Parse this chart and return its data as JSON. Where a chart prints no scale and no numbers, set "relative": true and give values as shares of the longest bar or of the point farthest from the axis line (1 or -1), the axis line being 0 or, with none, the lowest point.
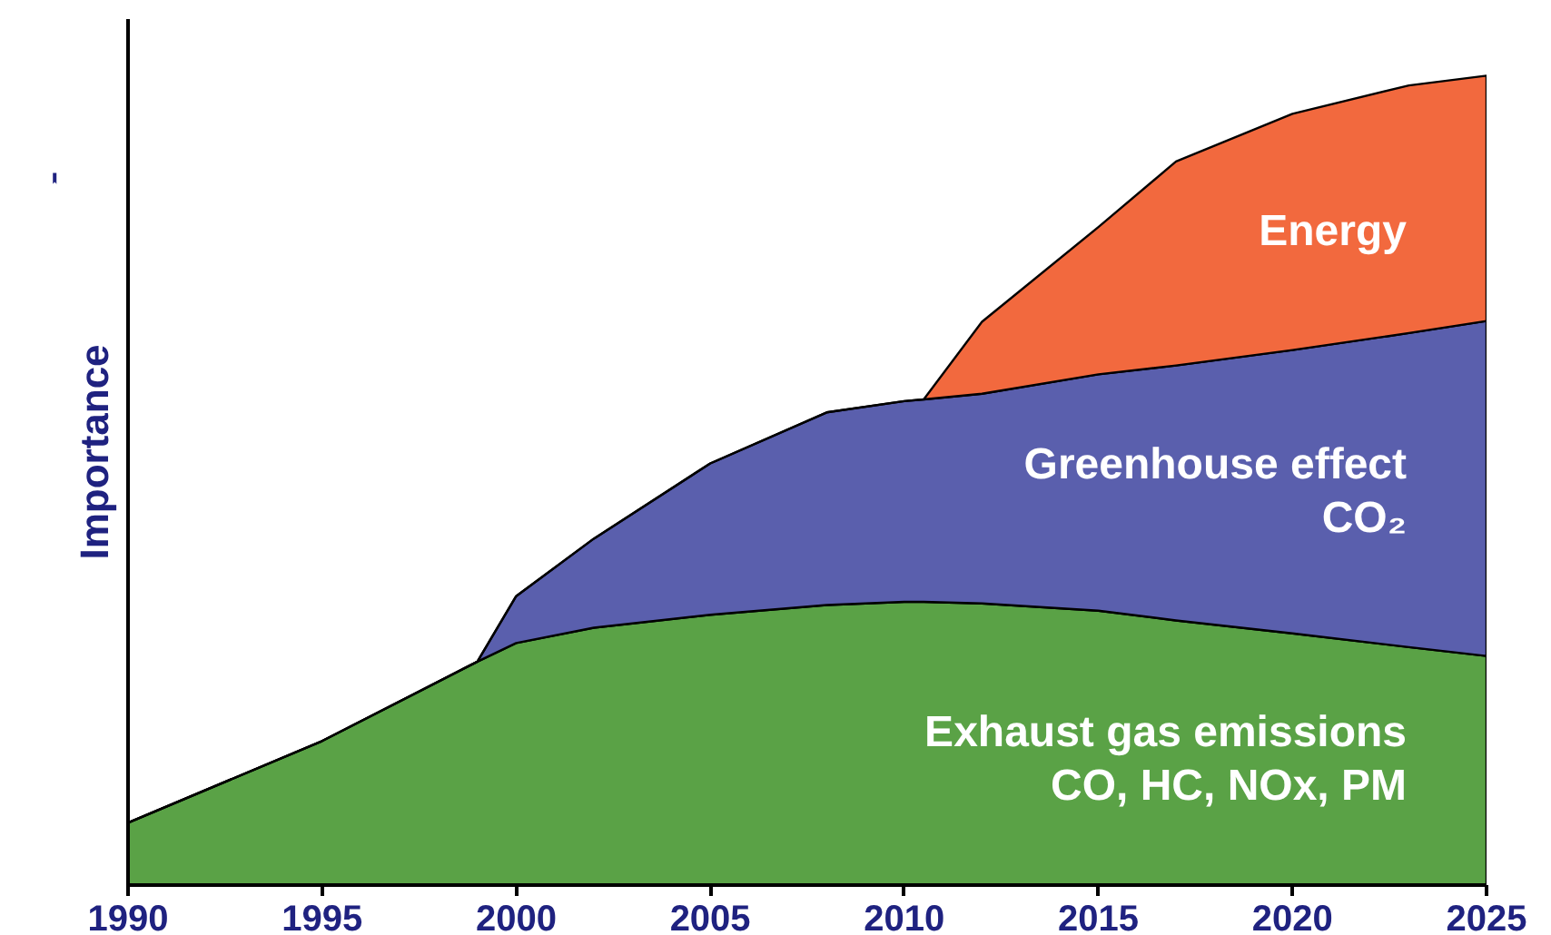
{
  "chart_data": {
    "type": "area",
    "stacked": true,
    "relative": true,
    "ylabel": "Importance",
    "x": [
      1990,
      1995,
      1999,
      2000,
      2002,
      2005,
      2008,
      2010,
      2010.5,
      2012,
      2015,
      2017,
      2020,
      2023,
      2025
    ],
    "xlim": [
      1990,
      2025
    ],
    "xticks": [
      1990,
      1995,
      2000,
      2005,
      2010,
      2015,
      2020,
      2025
    ],
    "series": [
      {
        "name": "Exhaust gas emissions\nCO, HC, NOx, PM",
        "color": "#5aa246",
        "values": [
          0.077,
          0.178,
          0.276,
          0.299,
          0.318,
          0.334,
          0.346,
          0.35,
          0.35,
          0.348,
          0.339,
          0.327,
          0.311,
          0.294,
          0.283
        ]
      },
      {
        "name": "Greenhouse effect\nCO₂",
        "color": "#5a5fad",
        "values": [
          0,
          0,
          0,
          0.058,
          0.11,
          0.187,
          0.238,
          0.248,
          0.25,
          0.259,
          0.292,
          0.315,
          0.35,
          0.388,
          0.414
        ]
      },
      {
        "name": "Energy",
        "color": "#f2693e",
        "values": [
          0,
          0,
          0,
          0,
          0,
          0,
          0,
          0,
          0,
          0.089,
          0.182,
          0.252,
          0.292,
          0.306,
          0.303
        ]
      }
    ]
  }
}
